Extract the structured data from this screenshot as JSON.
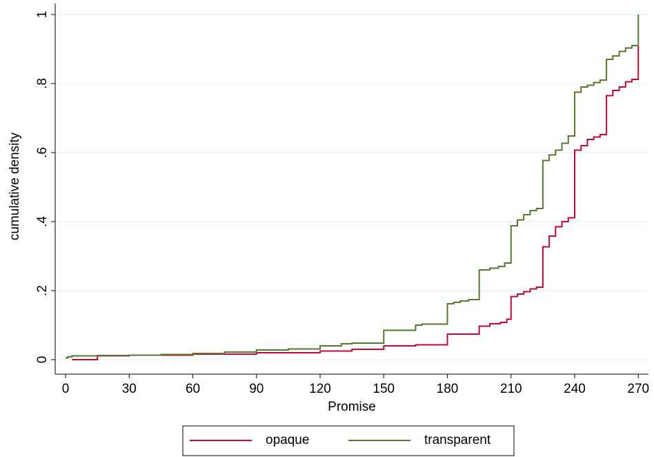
{
  "chart_data": {
    "type": "step",
    "x_label": "Promise",
    "y_label": "cumulative density",
    "xlim": [
      -4.9,
      274.8
    ],
    "ylim": [
      -0.042,
      1.032
    ],
    "xticks": [
      0,
      30,
      60,
      90,
      120,
      150,
      180,
      210,
      240,
      270
    ],
    "yticks": [
      0,
      {
        "value": 0.2,
        "label": ".2"
      },
      {
        "value": 0.4,
        "label": ".4"
      },
      {
        "value": 0.6,
        "label": ".6"
      },
      {
        "value": 0.8,
        "label": ".8"
      },
      1
    ],
    "grid": true,
    "legend": "bottom",
    "series": [
      {
        "name": "opaque",
        "color": "#c10534",
        "x": [
          3,
          15,
          30,
          60,
          90,
          120,
          135,
          150,
          165,
          180,
          195,
          200,
          205,
          208,
          210,
          213,
          216,
          219,
          222,
          225,
          228,
          231,
          234,
          237,
          240,
          243,
          246,
          249,
          252,
          255,
          258,
          261,
          264,
          267,
          270
        ],
        "values": [
          0,
          0.012,
          0.013,
          0.016,
          0.02,
          0.025,
          0.03,
          0.04,
          0.043,
          0.074,
          0.097,
          0.104,
          0.108,
          0.117,
          0.183,
          0.19,
          0.197,
          0.205,
          0.21,
          0.327,
          0.358,
          0.385,
          0.4,
          0.411,
          0.607,
          0.62,
          0.638,
          0.645,
          0.652,
          0.765,
          0.78,
          0.79,
          0.805,
          0.812,
          0.908
        ]
      },
      {
        "name": "transparent",
        "color": "#55792a",
        "x": [
          0,
          1,
          3,
          30,
          45,
          60,
          75,
          90,
          105,
          120,
          130,
          135,
          150,
          165,
          168,
          180,
          183,
          186,
          190,
          195,
          200,
          204,
          207,
          210,
          213,
          216,
          219,
          222,
          225,
          228,
          231,
          234,
          237,
          240,
          243,
          246,
          249,
          252,
          255,
          258,
          261,
          264,
          267,
          270
        ],
        "values": [
          0.005,
          0.008,
          0.011,
          0.013,
          0.015,
          0.018,
          0.022,
          0.028,
          0.031,
          0.04,
          0.046,
          0.048,
          0.085,
          0.1,
          0.103,
          0.162,
          0.166,
          0.17,
          0.174,
          0.26,
          0.265,
          0.27,
          0.28,
          0.388,
          0.405,
          0.42,
          0.432,
          0.438,
          0.577,
          0.593,
          0.607,
          0.627,
          0.648,
          0.775,
          0.79,
          0.795,
          0.803,
          0.81,
          0.87,
          0.88,
          0.893,
          0.903,
          0.91,
          1.0
        ]
      }
    ]
  }
}
